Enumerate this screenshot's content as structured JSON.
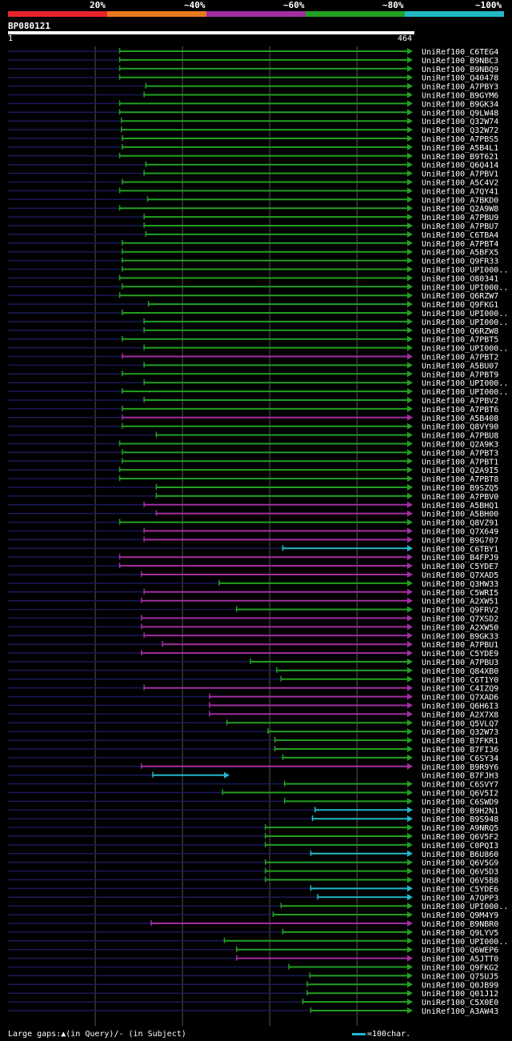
{
  "legend": {
    "labels": [
      "20%",
      "~40%",
      "~60%",
      "~80%",
      "~100%"
    ],
    "colors": [
      "#e8242c",
      "#e87a1e",
      "#a22ea2",
      "#22a022",
      "#22b8c8"
    ]
  },
  "query": {
    "name": "BP080121",
    "start": "1",
    "end": "464"
  },
  "footer": {
    "gaps": "Large gaps:▲(in Query)/- (in Subject)",
    "scale": "=100char."
  },
  "chart_data": {
    "type": "alignment",
    "query_length": 464,
    "hits": [
      {
        "name": "UniRef100_C6TEG4",
        "start": 128,
        "cls": "g"
      },
      {
        "name": "UniRef100_B9NBC3",
        "start": 128,
        "cls": "g"
      },
      {
        "name": "UniRef100_B9NBQ9",
        "start": 128,
        "cls": "g"
      },
      {
        "name": "UniRef100_Q40478",
        "start": 128,
        "cls": "g"
      },
      {
        "name": "UniRef100_A7PBY3",
        "start": 158,
        "cls": "g"
      },
      {
        "name": "UniRef100_B9GYM6",
        "start": 156,
        "cls": "g"
      },
      {
        "name": "UniRef100_B9GK34",
        "start": 128,
        "cls": "g"
      },
      {
        "name": "UniRef100_Q9LW48",
        "start": 128,
        "cls": "g"
      },
      {
        "name": "UniRef100_Q32W74",
        "start": 130,
        "cls": "g"
      },
      {
        "name": "UniRef100_Q32W72",
        "start": 130,
        "cls": "g"
      },
      {
        "name": "UniRef100_A7PBS5",
        "start": 131,
        "cls": "g"
      },
      {
        "name": "UniRef100_A5B4L1",
        "start": 131,
        "cls": "g"
      },
      {
        "name": "UniRef100_B9T621",
        "start": 128,
        "cls": "g"
      },
      {
        "name": "UniRef100_Q6Q414",
        "start": 158,
        "cls": "g"
      },
      {
        "name": "UniRef100_A7PBV1",
        "start": 156,
        "cls": "g"
      },
      {
        "name": "UniRef100_A5C4V2",
        "start": 131,
        "cls": "g"
      },
      {
        "name": "UniRef100_A7QY41",
        "start": 128,
        "cls": "g"
      },
      {
        "name": "UniRef100_A7BKD0",
        "start": 160,
        "cls": "g"
      },
      {
        "name": "UniRef100_Q2A9W8",
        "start": 128,
        "cls": "g"
      },
      {
        "name": "UniRef100_A7PBU9",
        "start": 156,
        "cls": "g"
      },
      {
        "name": "UniRef100_A7PBU7",
        "start": 156,
        "cls": "g"
      },
      {
        "name": "UniRef100_C6TBA4",
        "start": 158,
        "cls": "g"
      },
      {
        "name": "UniRef100_A7PBT4",
        "start": 131,
        "cls": "g"
      },
      {
        "name": "UniRef100_A5BFX5",
        "start": 131,
        "cls": "g"
      },
      {
        "name": "UniRef100_Q9FR33",
        "start": 131,
        "cls": "g"
      },
      {
        "name": "UniRef100_UPI000..",
        "start": 131,
        "cls": "g"
      },
      {
        "name": "UniRef100_O80341",
        "start": 128,
        "cls": "g"
      },
      {
        "name": "UniRef100_UPI000..",
        "start": 131,
        "cls": "g"
      },
      {
        "name": "UniRef100_Q6RZW7",
        "start": 128,
        "cls": "g"
      },
      {
        "name": "UniRef100_Q9FKG1",
        "start": 161,
        "cls": "g"
      },
      {
        "name": "UniRef100_UPI000..",
        "start": 131,
        "cls": "g"
      },
      {
        "name": "UniRef100_UPI000..",
        "start": 156,
        "cls": "g"
      },
      {
        "name": "UniRef100_Q6RZW8",
        "start": 156,
        "cls": "g"
      },
      {
        "name": "UniRef100_A7PBT5",
        "start": 131,
        "cls": "g"
      },
      {
        "name": "UniRef100_UPI000..",
        "start": 156,
        "cls": "g"
      },
      {
        "name": "UniRef100_A7PBT2",
        "start": 131,
        "cls": "m"
      },
      {
        "name": "UniRef100_A5BU07",
        "start": 156,
        "cls": "g"
      },
      {
        "name": "UniRef100_A7PBT9",
        "start": 131,
        "cls": "g"
      },
      {
        "name": "UniRef100_UPI000..",
        "start": 156,
        "cls": "g"
      },
      {
        "name": "UniRef100_UPI000..",
        "start": 131,
        "cls": "g"
      },
      {
        "name": "UniRef100_A7PBV2",
        "start": 156,
        "cls": "g"
      },
      {
        "name": "UniRef100_A7PBT6",
        "start": 131,
        "cls": "g"
      },
      {
        "name": "UniRef100_A5B408",
        "start": 131,
        "cls": "m"
      },
      {
        "name": "UniRef100_Q8VY90",
        "start": 131,
        "cls": "g"
      },
      {
        "name": "UniRef100_A7PBU8",
        "start": 170,
        "cls": "g"
      },
      {
        "name": "UniRef100_Q2A9K3",
        "start": 128,
        "cls": "g"
      },
      {
        "name": "UniRef100_A7PBT3",
        "start": 131,
        "cls": "g"
      },
      {
        "name": "UniRef100_A7PBT1",
        "start": 131,
        "cls": "g"
      },
      {
        "name": "UniRef100_Q2A9I5",
        "start": 128,
        "cls": "g"
      },
      {
        "name": "UniRef100_A7PBT8",
        "start": 128,
        "cls": "g"
      },
      {
        "name": "UniRef100_B9SZQ5",
        "start": 170,
        "cls": "g"
      },
      {
        "name": "UniRef100_A7PBV0",
        "start": 170,
        "cls": "g"
      },
      {
        "name": "UniRef100_A5BHQ1",
        "start": 156,
        "cls": "m"
      },
      {
        "name": "UniRef100_A5BH00",
        "start": 170,
        "cls": "m"
      },
      {
        "name": "UniRef100_Q8VZ91",
        "start": 128,
        "cls": "g"
      },
      {
        "name": "UniRef100_Q7X649",
        "start": 156,
        "cls": "m"
      },
      {
        "name": "UniRef100_B9G707",
        "start": 156,
        "cls": "m"
      },
      {
        "name": "UniRef100_C6TBY1",
        "start": 315,
        "cls": "c"
      },
      {
        "name": "UniRef100_B4FPJ9",
        "start": 128,
        "cls": "m"
      },
      {
        "name": "UniRef100_C5YDE7",
        "start": 128,
        "cls": "m"
      },
      {
        "name": "UniRef100_Q7XAD5",
        "start": 153,
        "cls": "m"
      },
      {
        "name": "UniRef100_Q3HW33",
        "start": 242,
        "cls": "g"
      },
      {
        "name": "UniRef100_C5WRI5",
        "start": 156,
        "cls": "m"
      },
      {
        "name": "UniRef100_A2XW51",
        "start": 153,
        "cls": "m"
      },
      {
        "name": "UniRef100_Q9FRV2",
        "start": 262,
        "cls": "g"
      },
      {
        "name": "UniRef100_Q7XSD2",
        "start": 153,
        "cls": "m"
      },
      {
        "name": "UniRef100_A2XW50",
        "start": 153,
        "cls": "m"
      },
      {
        "name": "UniRef100_B9GK33",
        "start": 156,
        "cls": "m"
      },
      {
        "name": "UniRef100_A7PBU1",
        "start": 177,
        "cls": "m"
      },
      {
        "name": "UniRef100_C5YDE9",
        "start": 153,
        "cls": "m"
      },
      {
        "name": "UniRef100_A7PBU3",
        "start": 278,
        "cls": "g"
      },
      {
        "name": "UniRef100_Q84XB0",
        "start": 308,
        "cls": "g"
      },
      {
        "name": "UniRef100_C6T1Y0",
        "start": 313,
        "cls": "g"
      },
      {
        "name": "UniRef100_C4IZQ9",
        "start": 156,
        "cls": "m"
      },
      {
        "name": "UniRef100_Q7XAD6",
        "start": 231,
        "cls": "m"
      },
      {
        "name": "UniRef100_Q6H6I3",
        "start": 231,
        "cls": "m"
      },
      {
        "name": "UniRef100_A2X7X8",
        "start": 231,
        "cls": "m"
      },
      {
        "name": "UniRef100_Q5VLQ7",
        "start": 251,
        "cls": "g"
      },
      {
        "name": "UniRef100_Q32W73",
        "start": 298,
        "cls": "g"
      },
      {
        "name": "UniRef100_B7FKR1",
        "start": 306,
        "cls": "g"
      },
      {
        "name": "UniRef100_B7FI36",
        "start": 306,
        "cls": "g"
      },
      {
        "name": "UniRef100_C6SY34",
        "start": 315,
        "cls": "g"
      },
      {
        "name": "UniRef100_B9R9Y6",
        "start": 153,
        "cls": "m"
      },
      {
        "name": "UniRef100_B7FJH3",
        "start": 166,
        "end": 254,
        "cls": "c"
      },
      {
        "name": "UniRef100_C6SVY7",
        "start": 317,
        "cls": "g"
      },
      {
        "name": "UniRef100_Q6V5I2",
        "start": 246,
        "cls": "g"
      },
      {
        "name": "UniRef100_C6SWD9",
        "start": 317,
        "cls": "g"
      },
      {
        "name": "UniRef100_B9H2N1",
        "start": 352,
        "cls": "c"
      },
      {
        "name": "UniRef100_B9S948",
        "start": 349,
        "cls": "c"
      },
      {
        "name": "UniRef100_A9NRQ5",
        "start": 295,
        "cls": "g"
      },
      {
        "name": "UniRef100_Q6V5F2",
        "start": 295,
        "cls": "g"
      },
      {
        "name": "UniRef100_C0PQI3",
        "start": 295,
        "cls": "g"
      },
      {
        "name": "UniRef100_B6U860",
        "start": 347,
        "cls": "c"
      },
      {
        "name": "UniRef100_Q6V5G9",
        "start": 295,
        "cls": "g"
      },
      {
        "name": "UniRef100_Q6V5D3",
        "start": 295,
        "cls": "g"
      },
      {
        "name": "UniRef100_Q6V5B8",
        "start": 295,
        "cls": "g"
      },
      {
        "name": "UniRef100_C5YDE6",
        "start": 347,
        "cls": "c"
      },
      {
        "name": "UniRef100_A7QPP3",
        "start": 355,
        "cls": "c"
      },
      {
        "name": "UniRef100_UPI000..",
        "start": 313,
        "cls": "g"
      },
      {
        "name": "UniRef100_Q9M4Y9",
        "start": 304,
        "cls": "g"
      },
      {
        "name": "UniRef100_B9NBR0",
        "start": 164,
        "cls": "m"
      },
      {
        "name": "UniRef100_Q9LYV5",
        "start": 315,
        "cls": "g"
      },
      {
        "name": "UniRef100_UPI000..",
        "start": 248,
        "cls": "g"
      },
      {
        "name": "UniRef100_Q6WEP6",
        "start": 262,
        "cls": "g"
      },
      {
        "name": "UniRef100_A5JTT0",
        "start": 262,
        "cls": "m"
      },
      {
        "name": "UniRef100_Q9FKG2",
        "start": 322,
        "cls": "g"
      },
      {
        "name": "UniRef100_Q75UJ5",
        "start": 346,
        "cls": "g"
      },
      {
        "name": "UniRef100_Q0JB99",
        "start": 343,
        "cls": "g"
      },
      {
        "name": "UniRef100_Q01J12",
        "start": 343,
        "cls": "g"
      },
      {
        "name": "UniRef100_C5X0E0",
        "start": 338,
        "cls": "g"
      },
      {
        "name": "UniRef100_A3AW43",
        "start": 347,
        "cls": "g"
      }
    ]
  }
}
